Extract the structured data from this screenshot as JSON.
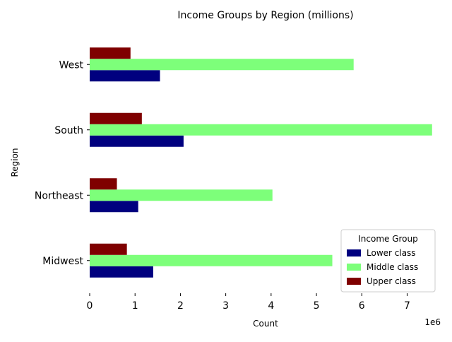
{
  "chart_data": {
    "type": "bar",
    "orientation": "horizontal",
    "title": "Income Groups by Region (millions)",
    "xlabel": "Count",
    "ylabel": "Region",
    "x_offset_text": "1e6",
    "xlim": [
      0,
      7600000
    ],
    "xticks": [
      0,
      1000000,
      2000000,
      3000000,
      4000000,
      5000000,
      6000000,
      7000000
    ],
    "xtick_labels": [
      "0",
      "1",
      "2",
      "3",
      "4",
      "5",
      "6",
      "7"
    ],
    "categories": [
      "Midwest",
      "Northeast",
      "South",
      "West"
    ],
    "series": [
      {
        "name": "Lower class",
        "color": "#00007f",
        "values": [
          1400000,
          1070000,
          2070000,
          1550000
        ]
      },
      {
        "name": "Middle class",
        "color": "#7dff7a",
        "values": [
          5350000,
          4030000,
          7550000,
          5820000
        ]
      },
      {
        "name": "Upper class",
        "color": "#7f0000",
        "values": [
          820000,
          600000,
          1150000,
          900000
        ]
      }
    ],
    "legend": {
      "title": "Income Group",
      "placement": "lower-right"
    },
    "grid": false
  }
}
